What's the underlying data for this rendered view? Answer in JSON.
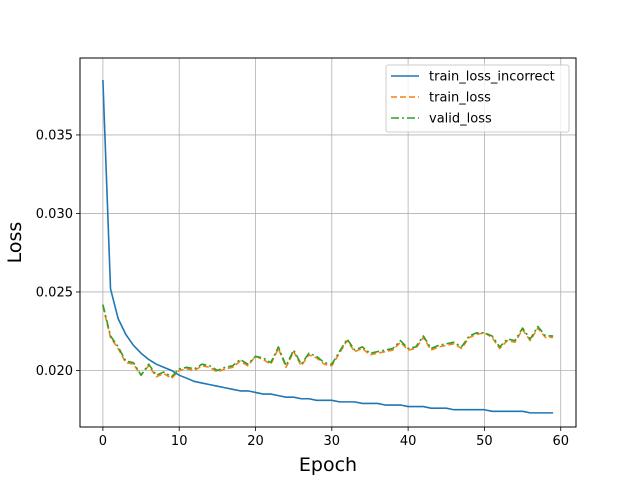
{
  "chart_data": {
    "type": "line",
    "title": "",
    "xlabel": "Epoch",
    "ylabel": "Loss",
    "xlim": [
      -3,
      62
    ],
    "ylim": [
      0.0164,
      0.0399
    ],
    "xticks": [
      0,
      10,
      20,
      30,
      40,
      50,
      60
    ],
    "yticks": [
      0.02,
      0.025,
      0.03,
      0.035
    ],
    "xtick_labels": [
      "0",
      "10",
      "20",
      "30",
      "40",
      "50",
      "60"
    ],
    "ytick_labels": [
      "0.020",
      "0.025",
      "0.030",
      "0.035"
    ],
    "grid": true,
    "legend_position": "top-right",
    "x": [
      0,
      1,
      2,
      3,
      4,
      5,
      6,
      7,
      8,
      9,
      10,
      11,
      12,
      13,
      14,
      15,
      16,
      17,
      18,
      19,
      20,
      21,
      22,
      23,
      24,
      25,
      26,
      27,
      28,
      29,
      30,
      31,
      32,
      33,
      34,
      35,
      36,
      37,
      38,
      39,
      40,
      41,
      42,
      43,
      44,
      45,
      46,
      47,
      48,
      49,
      50,
      51,
      52,
      53,
      54,
      55,
      56,
      57,
      58,
      59
    ],
    "series": [
      {
        "name": "train_loss_incorrect",
        "color": "#1f77b4",
        "style": "solid",
        "values": [
          0.0385,
          0.0252,
          0.0233,
          0.0223,
          0.0216,
          0.0211,
          0.0207,
          0.0204,
          0.0202,
          0.02,
          0.0197,
          0.0195,
          0.0193,
          0.0192,
          0.0191,
          0.019,
          0.0189,
          0.0188,
          0.0187,
          0.0187,
          0.0186,
          0.0185,
          0.0185,
          0.0184,
          0.0183,
          0.0183,
          0.0182,
          0.0182,
          0.0181,
          0.0181,
          0.0181,
          0.018,
          0.018,
          0.018,
          0.0179,
          0.0179,
          0.0179,
          0.0178,
          0.0178,
          0.0178,
          0.0177,
          0.0177,
          0.0177,
          0.0176,
          0.0176,
          0.0176,
          0.0175,
          0.0175,
          0.0175,
          0.0175,
          0.0175,
          0.0174,
          0.0174,
          0.0174,
          0.0174,
          0.0174,
          0.0173,
          0.0173,
          0.0173,
          0.0173
        ]
      },
      {
        "name": "train_loss",
        "color": "#ff7f0e",
        "style": "dashed",
        "values": [
          0.0241,
          0.0221,
          0.0214,
          0.0205,
          0.0204,
          0.0197,
          0.0203,
          0.0196,
          0.0198,
          0.0195,
          0.02,
          0.0201,
          0.02,
          0.0203,
          0.0202,
          0.0199,
          0.0201,
          0.0202,
          0.0206,
          0.0203,
          0.0209,
          0.0207,
          0.0204,
          0.0214,
          0.0202,
          0.0212,
          0.0203,
          0.021,
          0.0208,
          0.0204,
          0.0203,
          0.0211,
          0.0219,
          0.0212,
          0.0214,
          0.021,
          0.0211,
          0.0212,
          0.0213,
          0.0218,
          0.0213,
          0.0214,
          0.0221,
          0.0213,
          0.0215,
          0.0216,
          0.0217,
          0.0214,
          0.0221,
          0.0223,
          0.0224,
          0.0221,
          0.0214,
          0.0219,
          0.0218,
          0.0226,
          0.0219,
          0.0227,
          0.0221,
          0.0221
        ]
      },
      {
        "name": "valid_loss",
        "color": "#2ca02c",
        "style": "dashdot",
        "values": [
          0.0242,
          0.0222,
          0.0215,
          0.0206,
          0.0205,
          0.0197,
          0.0204,
          0.0197,
          0.0199,
          0.0196,
          0.0201,
          0.0202,
          0.0201,
          0.0204,
          0.0203,
          0.02,
          0.0202,
          0.0203,
          0.0207,
          0.0204,
          0.0209,
          0.0208,
          0.0205,
          0.0215,
          0.0203,
          0.0213,
          0.0204,
          0.0211,
          0.0209,
          0.0205,
          0.0204,
          0.0212,
          0.022,
          0.0213,
          0.0215,
          0.0211,
          0.0212,
          0.0213,
          0.0214,
          0.0219,
          0.0214,
          0.0215,
          0.0222,
          0.0214,
          0.0216,
          0.0217,
          0.0218,
          0.0215,
          0.0222,
          0.0224,
          0.0224,
          0.0222,
          0.0215,
          0.022,
          0.0219,
          0.0227,
          0.022,
          0.0228,
          0.0222,
          0.0222
        ]
      }
    ]
  }
}
